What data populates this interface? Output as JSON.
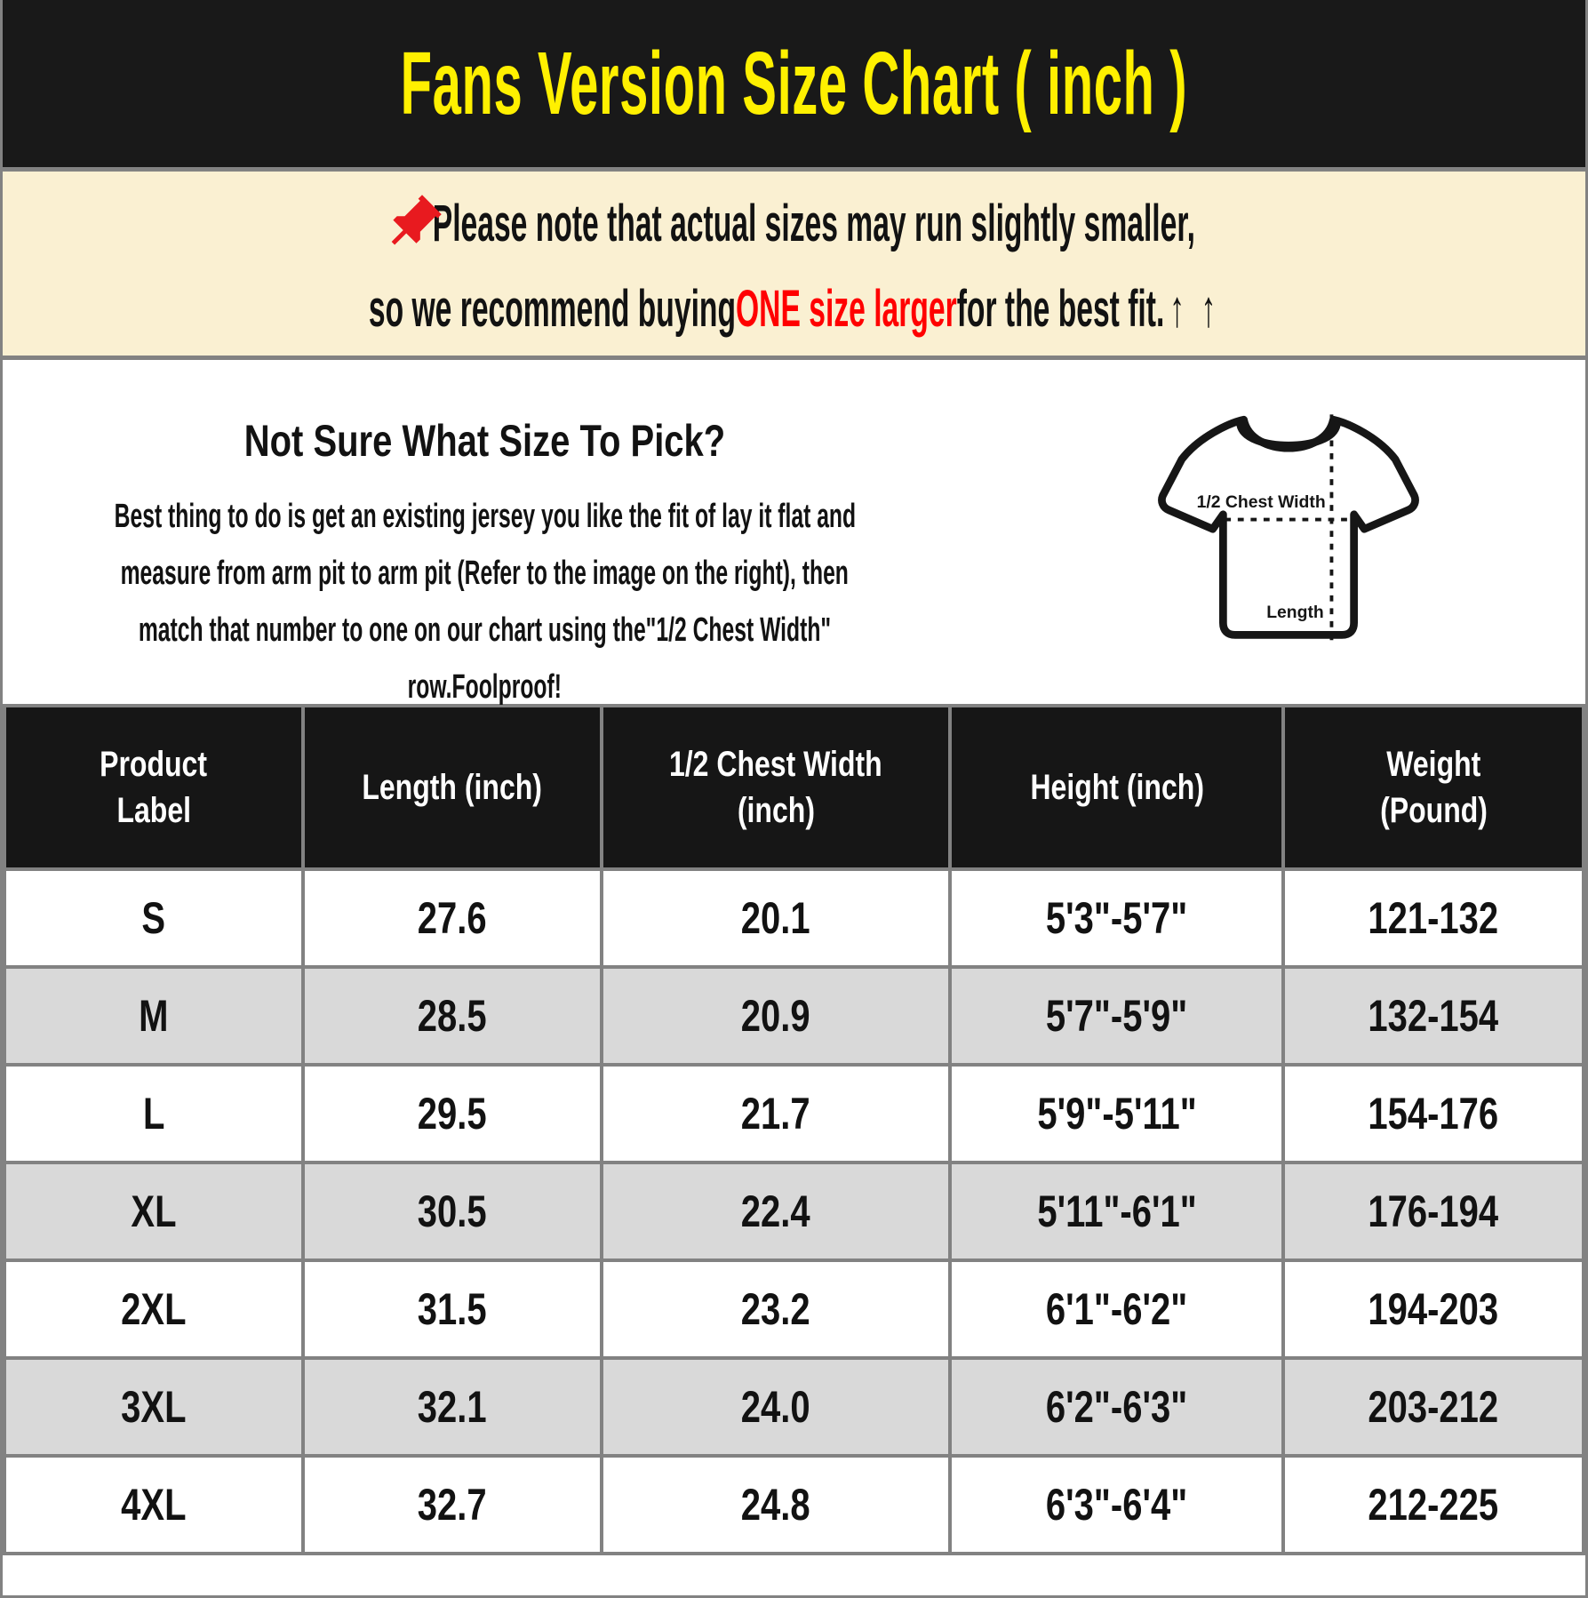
{
  "title": "Fans Version Size Chart ( inch )",
  "notice": {
    "pin_icon": "📌",
    "line1": "Please note that actual sizes may run slightly smaller,",
    "line2_pre": "so we recommend buying ",
    "line2_highlight": "ONE size larger",
    "line2_post": " for the best fit.",
    "arrows": "↑ ↑"
  },
  "guide": {
    "heading": "Not Sure What Size To Pick?",
    "body_lines": [
      "Best thing to do is get an existing jersey you like the fit of lay it flat and",
      "measure from arm pit to arm pit (Refer to the image on the right), then",
      "match that number to one on our chart using the\"1/2 Chest Width\"",
      "row.Foolproof!"
    ],
    "diagram": {
      "chest_label": "1/2 Chest Width",
      "length_label": "Length"
    }
  },
  "table": {
    "headers": [
      {
        "lines": [
          "Product",
          "Label"
        ]
      },
      {
        "lines": [
          "Length (inch)"
        ]
      },
      {
        "lines": [
          "1/2 Chest Width",
          "(inch)"
        ]
      },
      {
        "lines": [
          "Height (inch)"
        ]
      },
      {
        "lines": [
          "Weight",
          "(Pound)"
        ]
      }
    ],
    "col_widths_pct": [
      18.9,
      18.9,
      22.1,
      21.1,
      19.0
    ],
    "rows": [
      [
        "S",
        "27.6",
        "20.1",
        "5'3\"-5'7\"",
        "121-132"
      ],
      [
        "M",
        "28.5",
        "20.9",
        "5'7\"-5'9\"",
        "132-154"
      ],
      [
        "L",
        "29.5",
        "21.7",
        "5'9\"-5'11\"",
        "154-176"
      ],
      [
        "XL",
        "30.5",
        "22.4",
        "5'11\"-6'1\"",
        "176-194"
      ],
      [
        "2XL",
        "31.5",
        "23.2",
        "6'1\"-6'2\"",
        "194-203"
      ],
      [
        "3XL",
        "32.1",
        "24.0",
        "6'2\"-6'3\"",
        "203-212"
      ],
      [
        "4XL",
        "32.7",
        "24.8",
        "6'3\"-6'4\"",
        "212-225"
      ]
    ]
  },
  "colors": {
    "header_bg": "#191919",
    "title_yellow": "#FFF000",
    "notice_bg": "#FAF0D2",
    "highlight_red": "#FF0000",
    "pin_red": "#E81A1F",
    "row_alt_gray": "#D9D9D9",
    "border_gray": "#828282",
    "table_header_bg": "#161616",
    "text_black": "#121212"
  }
}
